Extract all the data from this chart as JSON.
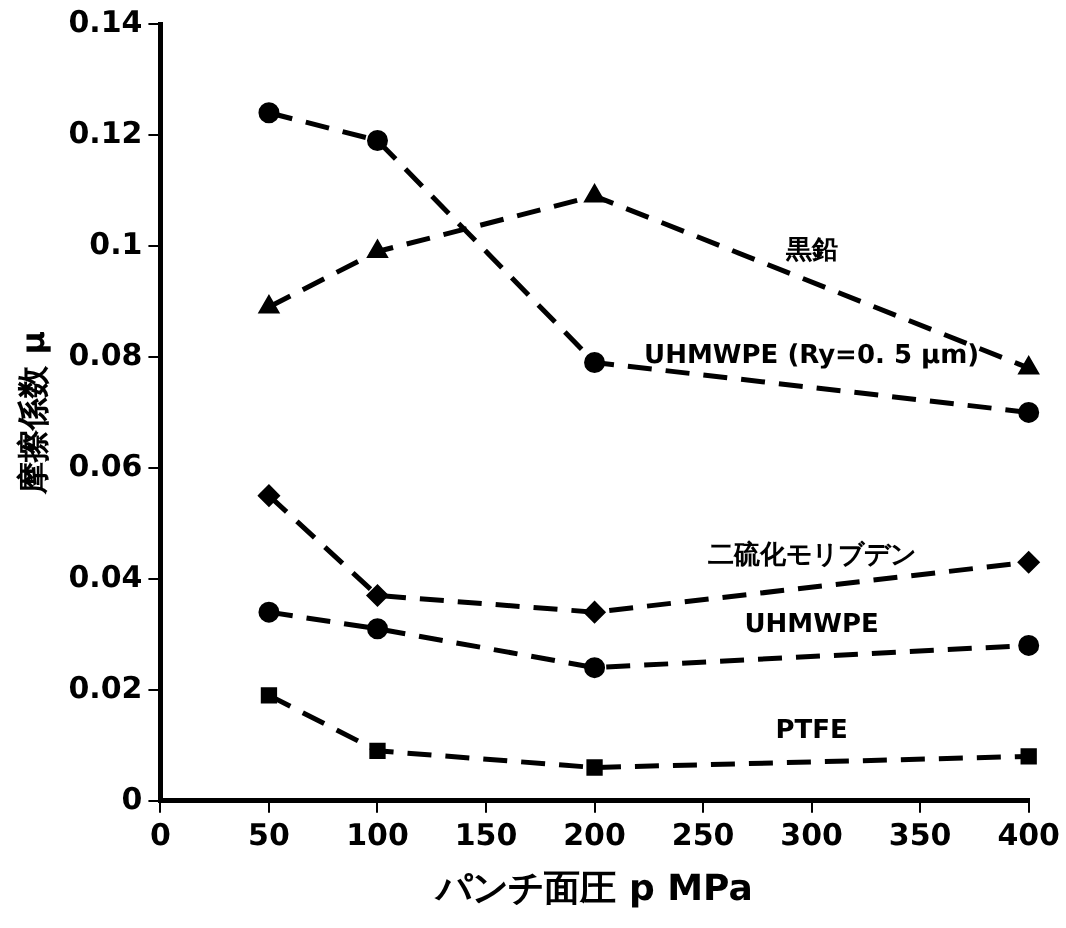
{
  "chart_data": {
    "type": "line",
    "xlabel": "パンチ面圧 p MPa",
    "ylabel": "摩擦係数 μ",
    "x": [
      50,
      100,
      200,
      400
    ],
    "series": [
      {
        "name": "UHMWPE (Ry=0. 5 μm)",
        "color": "#000000",
        "marker": "circle",
        "values": [
          0.124,
          0.119,
          0.079,
          0.07
        ]
      },
      {
        "name": "黒鉛",
        "color": "#000000",
        "marker": "triangle",
        "values": [
          0.089,
          0.099,
          0.109,
          0.078
        ]
      },
      {
        "name": "二硫化モリブデン",
        "color": "#000000",
        "marker": "diamond",
        "values": [
          0.055,
          0.037,
          0.034,
          0.043
        ]
      },
      {
        "name": "UHMWPE",
        "color": "#000000",
        "marker": "circle",
        "values": [
          0.034,
          0.031,
          0.024,
          0.028
        ]
      },
      {
        "name": "PTFE",
        "color": "#000000",
        "marker": "square",
        "values": [
          0.019,
          0.009,
          0.006,
          0.008
        ]
      }
    ],
    "xlim": [
      0,
      400
    ],
    "xticks": [
      0,
      50,
      100,
      150,
      200,
      250,
      300,
      350,
      400
    ],
    "ylim": [
      0,
      0.14
    ],
    "yticks": [
      0,
      0.02,
      0.04,
      0.06,
      0.08,
      0.1,
      0.12,
      0.14
    ],
    "grid": false,
    "legend": false,
    "line_style": "dashed"
  }
}
